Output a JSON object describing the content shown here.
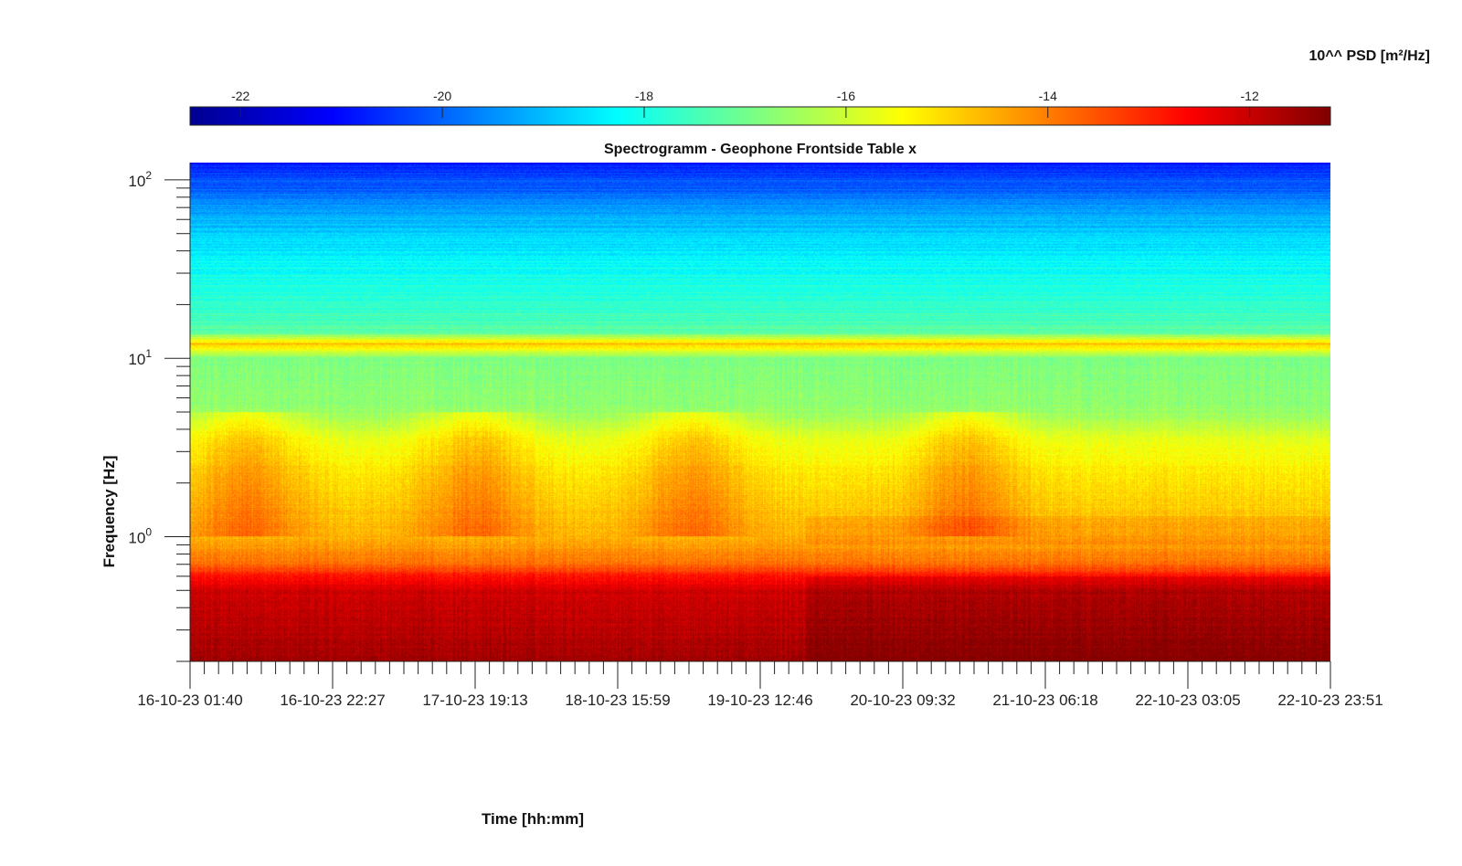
{
  "chart_data": {
    "type": "heatmap",
    "title": "Spectrogramm - Geophone Frontside Table x",
    "xlabel": "Time [hh:mm]",
    "ylabel": "Frequency [Hz]",
    "yscale": "log",
    "ylim": [
      0.2,
      125
    ],
    "y_ticks": [
      {
        "value": 1,
        "base": "10",
        "exp": "0"
      },
      {
        "value": 10,
        "base": "10",
        "exp": "1"
      },
      {
        "value": 100,
        "base": "10",
        "exp": "2"
      }
    ],
    "x_ticks": [
      "16-10-23 01:40",
      "16-10-23 22:27",
      "17-10-23 19:13",
      "18-10-23 15:59",
      "19-10-23 12:46",
      "20-10-23 09:32",
      "21-10-23 06:18",
      "22-10-23 03:05",
      "22-10-23 23:51"
    ],
    "minor_ticks_per_major": 10,
    "colorbar": {
      "label": "10^^ PSD [m²/Hz]",
      "range": [
        -22.5,
        -11.2
      ],
      "ticks": [
        "-22",
        "-20",
        "-18",
        "-16",
        "-14",
        "-12"
      ],
      "tick_values": [
        -22,
        -20,
        -18,
        -16,
        -14,
        -12
      ],
      "colormap": "jet"
    },
    "psd_profile_log10": [
      {
        "f": 0.2,
        "v": -11.6
      },
      {
        "f": 0.5,
        "v": -12.1
      },
      {
        "f": 0.6,
        "v": -12.8
      },
      {
        "f": 0.7,
        "v": -13.8
      },
      {
        "f": 1.0,
        "v": -14.6
      },
      {
        "f": 2.0,
        "v": -15.1
      },
      {
        "f": 3.5,
        "v": -15.7
      },
      {
        "f": 5.0,
        "v": -16.6
      },
      {
        "f": 10.0,
        "v": -16.9
      },
      {
        "f": 12.0,
        "v": -14.8
      },
      {
        "f": 14.0,
        "v": -17.2
      },
      {
        "f": 25.0,
        "v": -18.0
      },
      {
        "f": 35.0,
        "v": -18.3
      },
      {
        "f": 60.0,
        "v": -19.1
      },
      {
        "f": 125.0,
        "v": -20.8
      }
    ],
    "activity_periods_index": [
      0.05,
      0.25,
      0.44,
      0.68
    ],
    "shift_at_index": 0.54
  }
}
